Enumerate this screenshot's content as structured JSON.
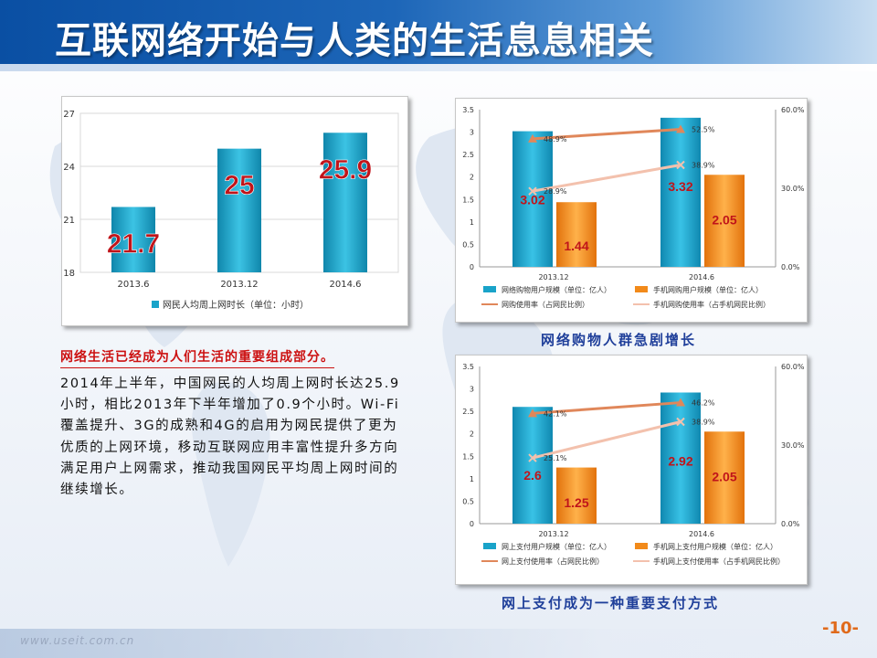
{
  "title": "互联网络开始与人类的生活息息相关",
  "colors": {
    "teal": "#19a3c9",
    "orange": "#f28a1a",
    "line_dark": "#e0875a",
    "line_light": "#f3c1ad",
    "label_red": "#c0141a",
    "title_blue": "#1f3f9a"
  },
  "chart_data": [
    {
      "type": "bar",
      "categories": [
        "2013.6",
        "2013.12",
        "2014.6"
      ],
      "series": [
        {
          "name": "网民人均周上网时长（单位：小时）",
          "values": [
            21.7,
            25,
            25.9
          ]
        }
      ],
      "data_labels": [
        "21.7",
        "25",
        "25.9"
      ],
      "yticks": [
        "18",
        "21",
        "24",
        "27"
      ],
      "ylim": [
        18,
        27
      ],
      "grid": true,
      "legend": "bottom"
    },
    {
      "type": "bar",
      "categories": [
        "2013.12",
        "2014.6"
      ],
      "series": [
        {
          "name": "网络购物用户规模（单位：亿人）",
          "values": [
            3.02,
            3.32
          ],
          "labels": [
            "3.02",
            "3.32"
          ]
        },
        {
          "name": "手机网购用户规模（单位：亿人）",
          "values": [
            1.44,
            2.05
          ],
          "labels": [
            "1.44",
            "2.05"
          ]
        }
      ],
      "line_series": [
        {
          "name": "网购使用率（占网民比例）",
          "values": [
            48.9,
            52.5
          ],
          "labels": [
            "48.9%",
            "52.5%"
          ]
        },
        {
          "name": "手机网购使用率（占手机网民比例）",
          "values": [
            28.9,
            38.9
          ],
          "labels": [
            "28.9%",
            "38.9%"
          ]
        }
      ],
      "yticks": [
        "0",
        "0.5",
        "1",
        "1.5",
        "2",
        "2.5",
        "3",
        "3.5"
      ],
      "ylim": [
        0,
        3.5
      ],
      "y2ticks": [
        "0.0%",
        "30.0%",
        "60.0%"
      ],
      "y2lim": [
        0,
        60
      ],
      "caption": "网络购物人群急剧增长",
      "legend": "bottom"
    },
    {
      "type": "bar",
      "categories": [
        "2013.12",
        "2014.6"
      ],
      "series": [
        {
          "name": "网上支付用户规模（单位：亿人）",
          "values": [
            2.6,
            2.92
          ],
          "labels": [
            "2.6",
            "2.92"
          ]
        },
        {
          "name": "手机网上支付用户规模（单位：亿人）",
          "values": [
            1.25,
            2.05
          ],
          "labels": [
            "1.25",
            "2.05"
          ]
        }
      ],
      "line_series": [
        {
          "name": "网上支付使用率（占网民比例）",
          "values": [
            42.1,
            46.2
          ],
          "labels": [
            "42.1%",
            "46.2%"
          ]
        },
        {
          "name": "手机网上支付使用率（占手机网民比例）",
          "values": [
            25.1,
            38.9
          ],
          "labels": [
            "25.1%",
            "38.9%"
          ]
        }
      ],
      "yticks": [
        "0",
        "0.5",
        "1",
        "1.5",
        "2",
        "2.5",
        "3",
        "3.5"
      ],
      "ylim": [
        0,
        3.5
      ],
      "y2ticks": [
        "0.0%",
        "30.0%",
        "60.0%"
      ],
      "y2lim": [
        0,
        60
      ],
      "caption": "网上支付成为一种重要支付方式",
      "legend": "bottom"
    }
  ],
  "text": {
    "lead": "网络生活已经成为人们生活的重要组成部分。",
    "body": "2014年上半年，中国网民的人均周上网时长达25.9小时，相比2013年下半年增加了0.9个小时。Wi-Fi覆盖提升、3G的成熟和4G的启用为网民提供了更为优质的上网环境，移动互联网应用丰富性提升多方向满足用户上网需求，推动我国网民平均周上网时间的继续增长。"
  },
  "footer": {
    "url": "www.useit.com.cn",
    "page": "-10-"
  }
}
